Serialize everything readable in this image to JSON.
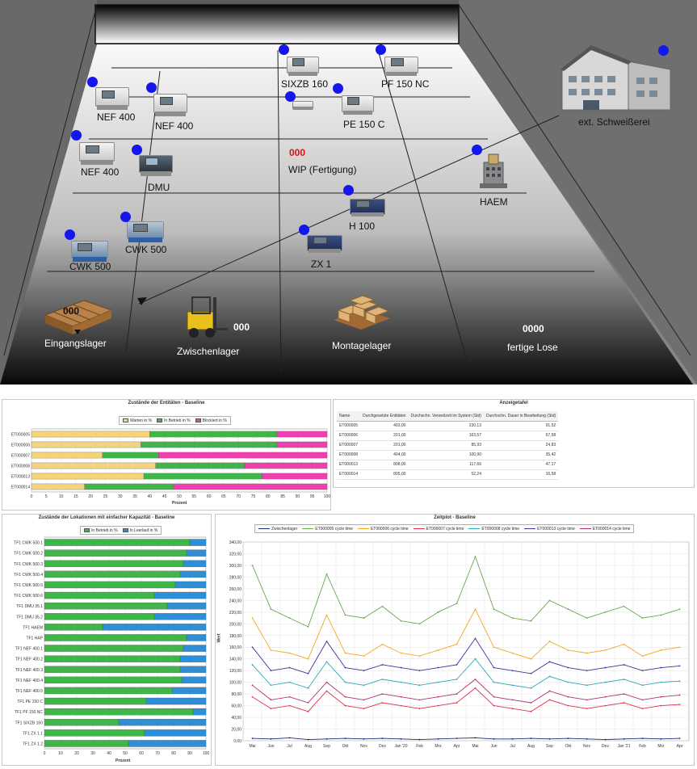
{
  "layout": {
    "machines": [
      {
        "id": "sixzb-160",
        "label": "SIXZB 160"
      },
      {
        "id": "pf-150-nc",
        "label": "PF 150 NC"
      },
      {
        "id": "nef-400-a",
        "label": "NEF 400"
      },
      {
        "id": "nef-400-b",
        "label": "NEF 400"
      },
      {
        "id": "pe-150-c",
        "label": "PE 150 C"
      },
      {
        "id": "nef-400-c",
        "label": "NEF 400"
      },
      {
        "id": "dmu",
        "label": "DMU"
      },
      {
        "id": "haem",
        "label": "HAEM"
      },
      {
        "id": "h-100",
        "label": "H 100"
      },
      {
        "id": "cwk-500-a",
        "label": "CWK 500"
      },
      {
        "id": "cwk-500-b",
        "label": "CWK 500"
      },
      {
        "id": "zx-1",
        "label": "ZX 1"
      }
    ],
    "ext_site": "ext. Schweißerei",
    "wip": {
      "value": "000",
      "label": "WIP (Fertigung)"
    },
    "storage": [
      {
        "id": "eingangslager",
        "label": "Eingangslager",
        "value": "000"
      },
      {
        "id": "zwischenlager",
        "label": "Zwischenlager",
        "value": "000"
      },
      {
        "id": "montagelager",
        "label": "Montagelager",
        "value": ""
      },
      {
        "id": "fertige-lose",
        "label": "fertige Lose",
        "value": "0000"
      }
    ],
    "colors": {
      "wip_value": "#e01010",
      "status_dot": "#1515ee"
    }
  },
  "charts": [
    {
      "id": "entities-states",
      "type": "bar",
      "stacked": "100%",
      "orientation": "horizontal",
      "title": "Zustände der Entitäten - Baseline",
      "xlabel": "Prozent",
      "xlim": [
        0,
        100
      ],
      "xticks": [
        0,
        5,
        10,
        15,
        20,
        25,
        30,
        35,
        40,
        45,
        50,
        55,
        60,
        65,
        70,
        75,
        80,
        85,
        90,
        95,
        100
      ],
      "categories": [
        "ET000005",
        "ET000006",
        "ET000007",
        "ET000008",
        "ET000013",
        "ET000014"
      ],
      "series": [
        {
          "name": "Warten in %",
          "color": "#f5d37a",
          "values": [
            40,
            37,
            24,
            42,
            38,
            18
          ]
        },
        {
          "name": "In Betrieb in %",
          "color": "#3fb54a",
          "values": [
            43,
            46,
            19,
            30,
            40,
            30
          ]
        },
        {
          "name": "Blockiert in %",
          "color": "#f040b0",
          "values": [
            17,
            17,
            57,
            28,
            22,
            52
          ]
        }
      ]
    },
    {
      "id": "locations-states",
      "type": "bar",
      "stacked": "100%",
      "orientation": "horizontal",
      "title": "Zustände der Lokationen mit einfacher Kapazität - Baseline",
      "xlabel": "Prozent",
      "xlim": [
        0,
        100
      ],
      "xticks": [
        0,
        10,
        20,
        30,
        40,
        50,
        60,
        70,
        80,
        90,
        100
      ],
      "categories": [
        "TF1 CWK 500.1",
        "TF1 CWK 500.2",
        "TF1 CWK 500.3",
        "TF1 CWK 500.4",
        "TF1 CWK 500.5",
        "TF1 CWK 500.6",
        "TF1 DMU 35.1",
        "TF1 DMU 35.2",
        "TF1 HAEM",
        "TF1 HAP",
        "TF1 NEF 400.1",
        "TF1 NEF 400.2",
        "TF1 NEF 400.3",
        "TF1 NEF 400.4",
        "TF1 NEF 400.5",
        "TF1 PE 150 C",
        "TF1 PF 150 NC",
        "TF1 SIXZB 160",
        "TF1 ZX 1.1",
        "TF1 ZX 1.2"
      ],
      "series": [
        {
          "name": "In Betrieb in %",
          "color": "#3fb54a",
          "values": [
            90,
            88,
            86,
            84,
            81,
            68,
            76,
            68,
            36,
            88,
            86,
            84,
            84,
            85,
            79,
            63,
            92,
            46,
            62,
            52
          ]
        },
        {
          "name": "In Leerlauf in %",
          "color": "#2e8fd6",
          "values": [
            10,
            12,
            14,
            16,
            19,
            32,
            24,
            32,
            64,
            12,
            14,
            16,
            16,
            15,
            21,
            37,
            8,
            54,
            38,
            48
          ]
        }
      ]
    },
    {
      "id": "timeplot",
      "type": "line",
      "title": "Zeitplot - Baseline",
      "ylabel": "Wert",
      "ylim": [
        0,
        340
      ],
      "yticks": [
        0,
        20,
        40,
        60,
        80,
        100,
        120,
        140,
        160,
        180,
        200,
        220,
        240,
        260,
        280,
        300,
        320,
        340
      ],
      "x": [
        "Mai",
        "Jun",
        "Jul",
        "Aug",
        "Sep",
        "Okt",
        "Nov",
        "Dez",
        "Jan '20",
        "Feb",
        "Mrz",
        "Apr",
        "Mai",
        "Jun",
        "Jul",
        "Aug",
        "Sep",
        "Okt",
        "Nov",
        "Dez",
        "Jan '21",
        "Feb",
        "Mrz",
        "Apr"
      ],
      "series": [
        {
          "name": "Zwischenlager",
          "color": "#1a2a7a",
          "values": [
            4,
            3,
            5,
            2,
            3,
            4,
            3,
            4,
            3,
            2,
            3,
            4,
            5,
            3,
            3,
            4,
            3,
            4,
            3,
            2,
            3,
            4,
            3,
            4
          ]
        },
        {
          "name": "ET000005 cycle time",
          "color": "#6aa84f",
          "values": [
            300,
            225,
            210,
            195,
            285,
            215,
            210,
            230,
            205,
            200,
            220,
            235,
            315,
            225,
            210,
            205,
            240,
            225,
            210,
            220,
            230,
            210,
            215,
            225
          ]
        },
        {
          "name": "ET000006 cycle time",
          "color": "#f5a623",
          "values": [
            210,
            155,
            150,
            140,
            215,
            150,
            145,
            165,
            150,
            145,
            155,
            165,
            225,
            160,
            150,
            140,
            170,
            155,
            150,
            155,
            165,
            145,
            155,
            160
          ]
        },
        {
          "name": "ET000007 cycle time",
          "color": "#e0304a",
          "values": [
            75,
            55,
            60,
            50,
            85,
            60,
            55,
            65,
            60,
            55,
            60,
            65,
            90,
            60,
            55,
            50,
            70,
            60,
            55,
            60,
            65,
            55,
            60,
            62
          ]
        },
        {
          "name": "ET000008 cycle time",
          "color": "#2aa8b8",
          "values": [
            130,
            95,
            100,
            90,
            135,
            100,
            95,
            105,
            100,
            95,
            100,
            105,
            140,
            100,
            95,
            90,
            110,
            100,
            95,
            100,
            105,
            95,
            100,
            102
          ]
        },
        {
          "name": "ET000013 cycle time",
          "color": "#4a2a9a",
          "values": [
            160,
            120,
            125,
            115,
            170,
            125,
            120,
            130,
            125,
            120,
            125,
            130,
            175,
            125,
            120,
            115,
            135,
            125,
            120,
            125,
            130,
            120,
            125,
            128
          ]
        },
        {
          "name": "ET000014 cycle time",
          "color": "#b03070",
          "values": [
            95,
            70,
            75,
            65,
            100,
            75,
            70,
            80,
            75,
            70,
            75,
            80,
            105,
            75,
            70,
            65,
            85,
            75,
            70,
            75,
            80,
            70,
            75,
            78
          ]
        }
      ]
    },
    {
      "id": "display-table",
      "type": "table",
      "title": "Anzeigetafel",
      "columns": [
        "Name",
        "Durchgesetzte Entitäten",
        "Durchschn. Verweilzeit im System (Std)",
        "Durchschn. Dauer in Bearbeitung (Std)"
      ],
      "rows": [
        [
          "ET000005",
          "403,00",
          "230,13",
          "91,52"
        ],
        [
          "ET000006",
          "201,00",
          "163,57",
          "67,58"
        ],
        [
          "ET000007",
          "201,00",
          "85,93",
          "24,83"
        ],
        [
          "ET000008",
          "404,00",
          "100,90",
          "35,42"
        ],
        [
          "ET000013",
          "808,00",
          "117,66",
          "47,17"
        ],
        [
          "ET000014",
          "805,00",
          "52,24",
          "16,58"
        ]
      ]
    }
  ]
}
